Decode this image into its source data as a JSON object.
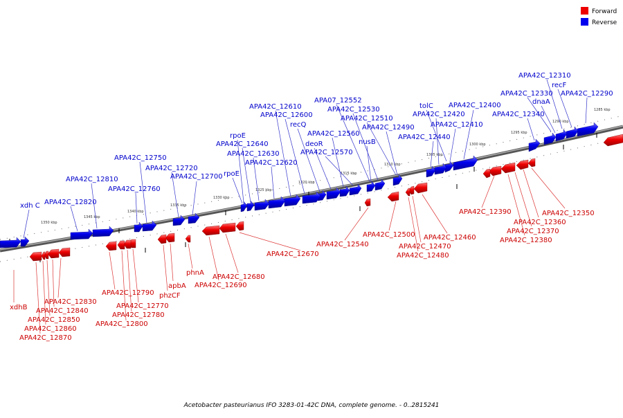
{
  "legend": {
    "items": [
      {
        "label": "Forward",
        "color": "#ee0000"
      },
      {
        "label": "Reverse",
        "color": "#0000ee"
      }
    ]
  },
  "caption": "Acetobacter pasteurianus IFO 3283-01-42C DNA, complete genome. - 0..2815241",
  "ruler": {
    "unit": "kbp",
    "ticks": [
      1285,
      1290,
      1295,
      1300,
      1305,
      1310,
      1315,
      1320,
      1325,
      1330,
      1335,
      1340,
      1345,
      1350
    ]
  },
  "colors": {
    "forward": "#ee0000",
    "reverse": "#0000ee",
    "backbone": "#555555"
  },
  "reverse_labels": [
    "APA42C_12310",
    "recF",
    "APA42C_12290",
    "APA42C_12330",
    "dnaA",
    "APA42C_12340",
    "APA42C_12400",
    "tolC",
    "APA42C_12420",
    "APA42C_12410",
    "APA42C_12440",
    "APA07_12552",
    "APA42C_12530",
    "APA42C_12510",
    "APA42C_12490",
    "nusB",
    "APA42C_12610",
    "APA42C_12600",
    "recQ",
    "APA42C_12560",
    "deoR",
    "APA42C_12570",
    "rpoE",
    "APA42C_12640",
    "APA42C_12630",
    "APA42C_12620",
    "rpoE",
    "APA42C_12750",
    "APA42C_12720",
    "APA42C_12700",
    "APA42C_12760",
    "APA42C_12810",
    "APA42C_12820",
    "xdh C"
  ],
  "forward_labels": [
    "APA42C_12390",
    "APA42C_12350",
    "APA42C_12360",
    "APA42C_12370",
    "APA42C_12380",
    "APA42C_12500",
    "APA42C_12460",
    "APA42C_12540",
    "APA42C_12470",
    "APA42C_12480",
    "APA42C_12670",
    "APA42C_12680",
    "APA42C_12690",
    "phnA",
    "apbA",
    "phzCF",
    "APA42C_12790",
    "APA42C_12770",
    "APA42C_12780",
    "APA42C_12800",
    "xdhB",
    "APA42C_12830",
    "APA42C_12840",
    "APA42C_12850",
    "APA42C_12860",
    "APA42C_12870"
  ]
}
